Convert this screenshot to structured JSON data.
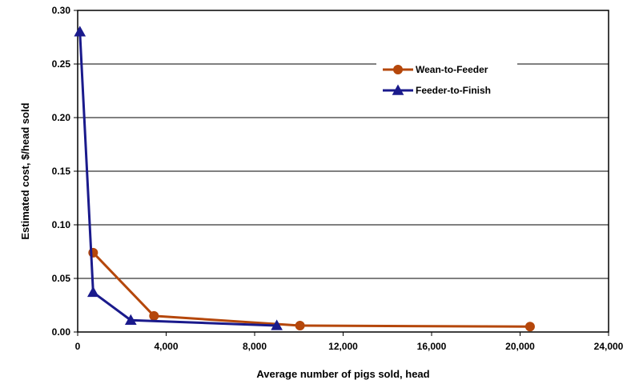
{
  "chart_data": {
    "type": "line",
    "title": "",
    "xlabel": "Average number of pigs sold, head",
    "ylabel": "Estimated cost, $/head sold",
    "xlim": [
      0,
      24000
    ],
    "ylim": [
      0,
      0.3
    ],
    "x_ticks": [
      0,
      4000,
      8000,
      12000,
      16000,
      20000,
      24000
    ],
    "x_tick_labels": [
      "0",
      "4,000",
      "8,000",
      "12,000",
      "16,000",
      "20,000",
      "24,000"
    ],
    "y_ticks": [
      0,
      0.05,
      0.1,
      0.15,
      0.2,
      0.25,
      0.3
    ],
    "y_tick_labels": [
      "0.00",
      "0.05",
      "0.10",
      "0.15",
      "0.20",
      "0.25",
      "0.30"
    ],
    "grid": "horizontal",
    "legend_position": "top-right",
    "series": [
      {
        "name": "Wean-to-Feeder",
        "color": "#B5470B",
        "marker": "circle",
        "x": [
          700,
          3450,
          10050,
          20450
        ],
        "y": [
          0.074,
          0.015,
          0.006,
          0.005
        ]
      },
      {
        "name": "Feeder-to-Finish",
        "color": "#1A1A8C",
        "marker": "triangle",
        "x": [
          100,
          700,
          2400,
          9000
        ],
        "y": [
          0.28,
          0.037,
          0.011,
          0.006
        ]
      }
    ]
  }
}
